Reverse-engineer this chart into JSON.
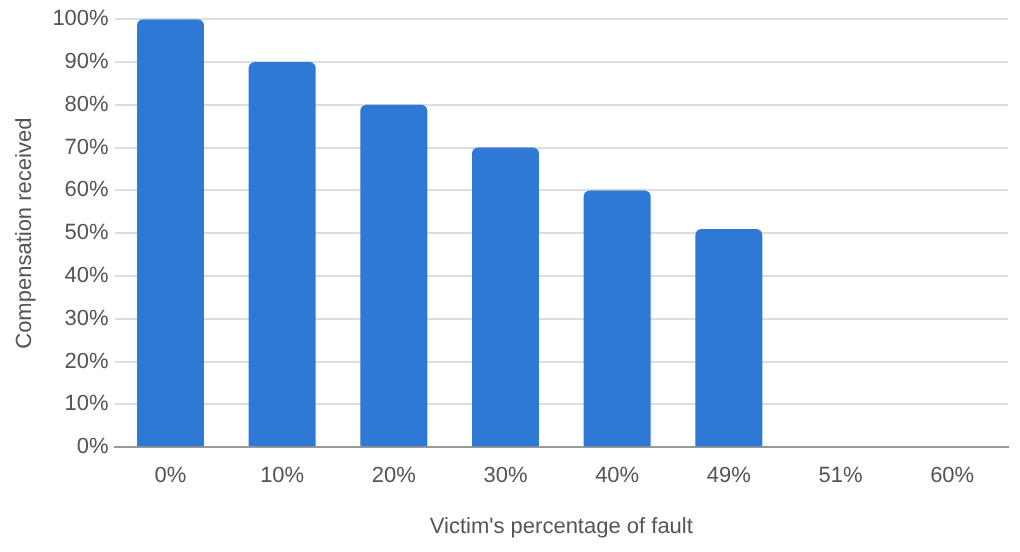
{
  "chart_data": {
    "type": "bar",
    "xlabel": "Victim's percentage of fault",
    "ylabel": "Compensation received",
    "categories": [
      "0%",
      "10%",
      "20%",
      "30%",
      "40%",
      "49%",
      "51%",
      "60%"
    ],
    "values": [
      100,
      90,
      80,
      70,
      60,
      51,
      0,
      0
    ],
    "color": "#2e78d6",
    "ylim": [
      0,
      100
    ],
    "yticks": [
      {
        "value": 0,
        "label": "0%"
      },
      {
        "value": 10,
        "label": "10%"
      },
      {
        "value": 20,
        "label": "20%"
      },
      {
        "value": 30,
        "label": "30%"
      },
      {
        "value": 40,
        "label": "40%"
      },
      {
        "value": 50,
        "label": "50%"
      },
      {
        "value": 60,
        "label": "60%"
      },
      {
        "value": 70,
        "label": "70%"
      },
      {
        "value": 80,
        "label": "80%"
      },
      {
        "value": 90,
        "label": "90%"
      },
      {
        "value": 100,
        "label": "100%"
      }
    ],
    "grid": "y",
    "legend": false
  }
}
